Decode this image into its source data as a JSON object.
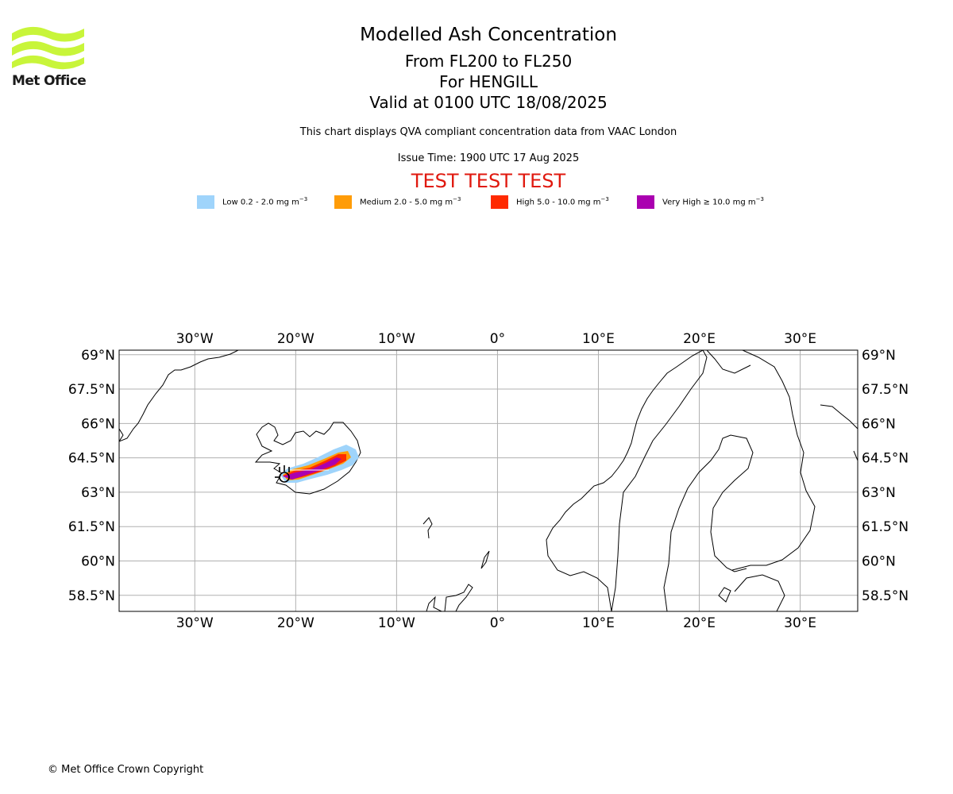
{
  "logo": {
    "text": "Met Office",
    "color": "#c8f53a"
  },
  "header": {
    "title": "Modelled Ash Concentration",
    "flight_levels": "From FL200 to FL250",
    "volcano": "For HENGILL",
    "valid": "Valid at 0100 UTC 18/08/2025",
    "subtitle": "This chart displays QVA compliant concentration data from VAAC London",
    "issue_time": "Issue Time: 1900 UTC 17 Aug 2025",
    "test_banner": "TEST TEST TEST"
  },
  "legend": [
    {
      "label": "Low 0.2 - 2.0 mg m",
      "sup": "−3",
      "color": "#9fd4fb"
    },
    {
      "label": "Medium 2.0 - 5.0 mg m",
      "sup": "−3",
      "color": "#ff9c08"
    },
    {
      "label": "High 5.0 - 10.0 mg m",
      "sup": "−3",
      "color": "#ff2a00"
    },
    {
      "label": "Very High  ≥  10.0 mg m",
      "sup": "−3",
      "color": "#aa00b0"
    }
  ],
  "map": {
    "lon_range": [
      -37.5,
      35.7
    ],
    "lat_range": [
      57.8,
      69.2
    ],
    "lon_ticks": [
      {
        "v": -30,
        "label": "30°W"
      },
      {
        "v": -20,
        "label": "20°W"
      },
      {
        "v": -10,
        "label": "10°W"
      },
      {
        "v": 0,
        "label": "0°"
      },
      {
        "v": 10,
        "label": "10°E"
      },
      {
        "v": 20,
        "label": "20°E"
      },
      {
        "v": 30,
        "label": "30°E"
      }
    ],
    "lat_ticks": [
      {
        "v": 69,
        "label": "69°N"
      },
      {
        "v": 67.5,
        "label": "67.5°N"
      },
      {
        "v": 66,
        "label": "66°N"
      },
      {
        "v": 64.5,
        "label": "64.5°N"
      },
      {
        "v": 63,
        "label": "63°N"
      },
      {
        "v": 61.5,
        "label": "61.5°N"
      },
      {
        "v": 60,
        "label": "60°N"
      },
      {
        "v": 58.5,
        "label": "58.5°N"
      }
    ],
    "grid": true,
    "volcano_location": {
      "lon": -21.3,
      "lat": 64.05
    }
  },
  "footer": {
    "copyright": "© Met Office Crown Copyright"
  }
}
